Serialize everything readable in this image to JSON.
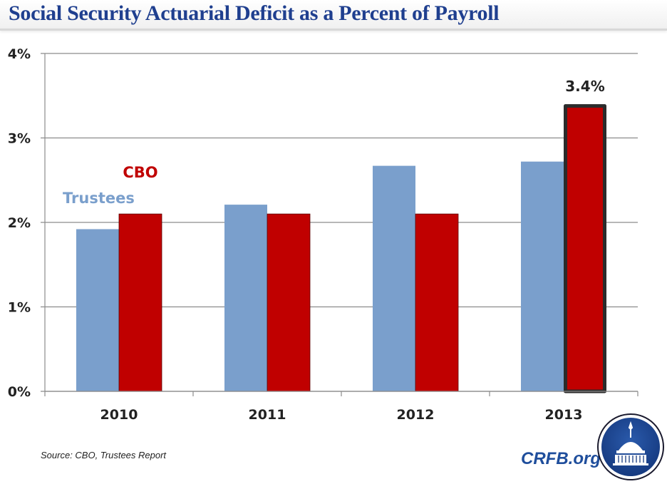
{
  "header": {
    "title": "Social Security Actuarial Deficit as a Percent of Payroll"
  },
  "chart_data": {
    "type": "bar",
    "title": "Social Security Actuarial Deficit as a Percent of Payroll",
    "xlabel": "",
    "ylabel": "",
    "categories": [
      "2010",
      "2011",
      "2012",
      "2013"
    ],
    "series": [
      {
        "name": "Trustees",
        "color": "#7a9fcc",
        "values": [
          1.92,
          2.21,
          2.67,
          2.72
        ]
      },
      {
        "name": "CBO",
        "color": "#c00000",
        "values": [
          2.1,
          2.1,
          2.1,
          3.4
        ]
      }
    ],
    "ylim": [
      0,
      4
    ],
    "yticks": [
      0,
      1,
      2,
      3,
      4
    ],
    "ytick_labels": [
      "0%",
      "1%",
      "2%",
      "3%",
      "4%"
    ],
    "grid": true,
    "legend": "inline labels above first category",
    "annotations": [
      {
        "category": "2013",
        "series": "CBO",
        "text": "3.4%",
        "highlighted": true
      }
    ]
  },
  "footer": {
    "source": "Source: CBO, Trustees Report",
    "brand": "CRFB.org",
    "logo_icon": "capitol-dome-icon",
    "logo_color": "#1f4e9c"
  }
}
